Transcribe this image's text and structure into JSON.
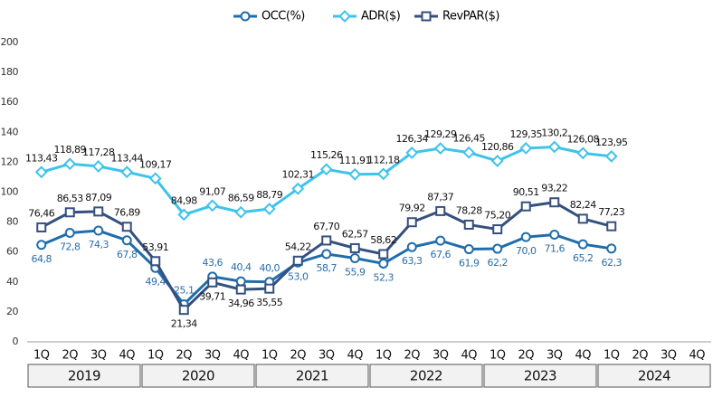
{
  "chart_data": {
    "type": "line",
    "categories": [
      "1Q",
      "2Q",
      "3Q",
      "4Q",
      "1Q",
      "2Q",
      "3Q",
      "4Q",
      "1Q",
      "2Q",
      "3Q",
      "4Q",
      "1Q",
      "2Q",
      "3Q",
      "4Q",
      "1Q",
      "2Q",
      "3Q",
      "4Q",
      "1Q",
      "2Q",
      "3Q",
      "4Q"
    ],
    "groups": [
      "2019",
      "2020",
      "2021",
      "2022",
      "2023",
      "2024"
    ],
    "series": [
      {
        "name": "OCC(%)",
        "color": "#1f6dac",
        "marker": "circle",
        "values": [
          64.8,
          72.8,
          74.3,
          67.8,
          49.4,
          25.1,
          43.6,
          40.4,
          40.0,
          53.0,
          58.7,
          55.9,
          52.3,
          63.3,
          67.6,
          61.9,
          62.2,
          70.0,
          71.6,
          65.2,
          62.3,
          null,
          null,
          null
        ],
        "value_labels": [
          "64,8",
          "72,8",
          "74,3",
          "67,8",
          "49,4",
          "25,1",
          "43,6",
          "40,4",
          "40,0",
          "53,0",
          "58,7",
          "55,9",
          "52,3",
          "63,3",
          "67,6",
          "61,9",
          "62,2",
          "70,0",
          "71,6",
          "65,2",
          "62,3",
          null,
          null,
          null
        ]
      },
      {
        "name": "ADR($)",
        "color": "#3ec3ea",
        "marker": "diamond",
        "values": [
          113.43,
          118.89,
          117.28,
          113.44,
          109.17,
          84.98,
          91.07,
          86.59,
          88.79,
          102.31,
          115.26,
          111.91,
          112.18,
          126.34,
          129.29,
          126.45,
          120.86,
          129.35,
          130.2,
          126.08,
          123.95,
          null,
          null,
          null
        ],
        "value_labels": [
          "113,43",
          "118,89",
          "117,28",
          "113,44",
          "109,17",
          "84,98",
          "91,07",
          "86,59",
          "88,79",
          "102,31",
          "115,26",
          "111,91",
          "112,18",
          "126,34",
          "129,29",
          "126,45",
          "120,86",
          "129,35",
          "130,2",
          "126,08",
          "123,95",
          null,
          null,
          null
        ]
      },
      {
        "name": "RevPAR($)",
        "color": "#34507f",
        "marker": "square",
        "values": [
          76.46,
          86.53,
          87.09,
          76.89,
          53.91,
          21.34,
          39.71,
          34.96,
          35.55,
          54.22,
          67.7,
          62.57,
          58.62,
          79.92,
          87.37,
          78.28,
          75.2,
          90.51,
          93.22,
          82.24,
          77.23,
          null,
          null,
          null
        ],
        "value_labels": [
          "76,46",
          "86,53",
          "87,09",
          "76,89",
          "53,91",
          "21,34",
          "39,71",
          "34,96",
          "35,55",
          "54,22",
          "67,70",
          "62,57",
          "58,62",
          "79,92",
          "87,37",
          "78,28",
          "75,20",
          "90,51",
          "93,22",
          "82,24",
          "77,23",
          null,
          null,
          null
        ]
      }
    ],
    "ylim": [
      0,
      200
    ],
    "yticks": [
      0,
      20,
      40,
      60,
      80,
      100,
      120,
      140,
      160,
      180,
      200
    ],
    "grid": false,
    "legend": "top"
  }
}
